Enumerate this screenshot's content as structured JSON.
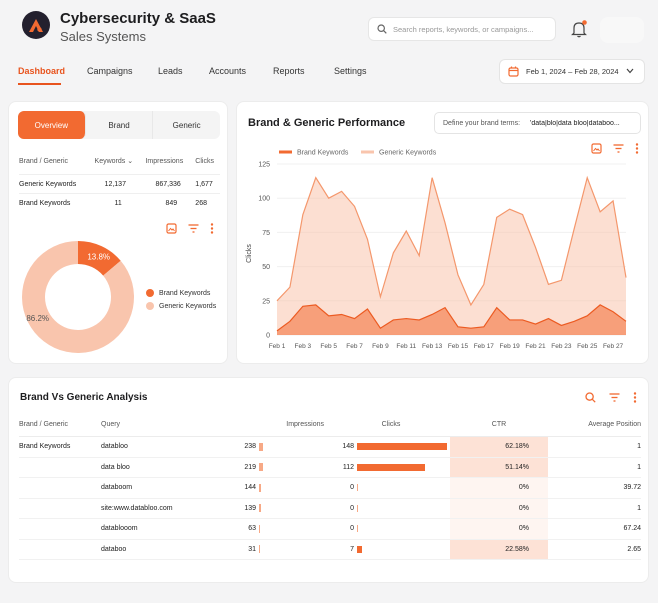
{
  "header": {
    "title": "Cybersecurity & SaaS",
    "subtitle": "Sales Systems",
    "search_placeholder": "Search reports, keywords, or campaigns..."
  },
  "nav": {
    "tabs": [
      "Dashboard",
      "Campaigns",
      "Leads",
      "Accounts",
      "Reports",
      "Settings"
    ],
    "active": "Dashboard",
    "date_range": "Feb 1, 2024 – Feb 28, 2024"
  },
  "summary": {
    "segments": [
      "Overview",
      "Brand",
      "Generic"
    ],
    "active_segment": "Overview",
    "columns": [
      "Brand / Generic",
      "Keywords",
      "Impressions",
      "Clicks"
    ],
    "rows": [
      {
        "name": "Generic Keywords",
        "keywords": "12,137",
        "impressions": "867,336",
        "clicks": "1,677"
      },
      {
        "name": "Brand Keywords",
        "keywords": "11",
        "impressions": "849",
        "clicks": "268"
      }
    ],
    "donut": {
      "brand_pct": "13.8%",
      "generic_pct": "86.2%",
      "brand_value": 13.8,
      "legend": [
        "Brand Keywords",
        "Generic Keywords"
      ],
      "colors": {
        "brand": "#f26a31",
        "generic": "#f9c5ad"
      }
    }
  },
  "performance": {
    "title": "Brand & Generic Performance",
    "terms_label": "Define your brand terms:",
    "terms_value": "'data|blo|data bloo|databoo..."
  },
  "chart_data": {
    "type": "area",
    "x": [
      "Feb 1",
      "Feb 2",
      "Feb 3",
      "Feb 4",
      "Feb 5",
      "Feb 6",
      "Feb 7",
      "Feb 8",
      "Feb 9",
      "Feb 10",
      "Feb 11",
      "Feb 12",
      "Feb 13",
      "Feb 14",
      "Feb 15",
      "Feb 16",
      "Feb 17",
      "Feb 18",
      "Feb 19",
      "Feb 20",
      "Feb 21",
      "Feb 22",
      "Feb 23",
      "Feb 24",
      "Feb 25",
      "Feb 26",
      "Feb 27",
      "Feb 28"
    ],
    "xticks": [
      "Feb 1",
      "Feb 3",
      "Feb 5",
      "Feb 7",
      "Feb 9",
      "Feb 11",
      "Feb 13",
      "Feb 15",
      "Feb 17",
      "Feb 19",
      "Feb 21",
      "Feb 23",
      "Feb 25",
      "Feb 27"
    ],
    "series": [
      {
        "name": "Brand Keywords",
        "color": "#f26a31",
        "values": [
          3,
          10,
          21,
          22,
          14,
          15,
          12,
          19,
          5,
          11,
          12,
          11,
          15,
          20,
          6,
          5,
          6,
          20,
          11,
          11,
          8,
          12,
          7,
          10,
          14,
          22,
          17,
          10
        ]
      },
      {
        "name": "Generic Keywords",
        "color": "#f9c5ad",
        "values": [
          25,
          35,
          88,
          115,
          100,
          105,
          94,
          70,
          28,
          60,
          76,
          58,
          115,
          82,
          44,
          22,
          37,
          86,
          92,
          88,
          64,
          37,
          40,
          78,
          115,
          90,
          98,
          42
        ]
      }
    ],
    "ylabel": "Clicks",
    "ylim": [
      0,
      125
    ],
    "yticks": [
      0,
      25,
      50,
      75,
      100,
      125
    ],
    "legend": "top-left"
  },
  "analysis": {
    "title": "Brand Vs Generic Analysis",
    "columns": [
      "Brand / Generic",
      "Query",
      "Impressions",
      "Clicks",
      "CTR",
      "Average Position"
    ],
    "group": "Brand Keywords",
    "rows": [
      {
        "query": "databloo",
        "impressions": "238",
        "clicks": "148",
        "ctr": "62.18%",
        "avg": "1",
        "imp_frac": 1.0,
        "clk_frac": 1.0,
        "ctr_hl": true
      },
      {
        "query": "data bloo",
        "impressions": "219",
        "clicks": "112",
        "ctr": "51.14%",
        "avg": "1",
        "imp_frac": 0.92,
        "clk_frac": 0.76,
        "ctr_hl": true
      },
      {
        "query": "databoom",
        "impressions": "144",
        "clicks": "0",
        "ctr": "0%",
        "avg": "39.72",
        "imp_frac": 0.6,
        "clk_frac": 0.0,
        "ctr_hl": false
      },
      {
        "query": "site:www.databloo.com",
        "impressions": "139",
        "clicks": "0",
        "ctr": "0%",
        "avg": "1",
        "imp_frac": 0.58,
        "clk_frac": 0.0,
        "ctr_hl": false
      },
      {
        "query": "datablooom",
        "impressions": "63",
        "clicks": "0",
        "ctr": "0%",
        "avg": "67.24",
        "imp_frac": 0.26,
        "clk_frac": 0.0,
        "ctr_hl": false
      },
      {
        "query": "databoo",
        "impressions": "31",
        "clicks": "7",
        "ctr": "22.58%",
        "avg": "2.65",
        "imp_frac": 0.13,
        "clk_frac": 0.05,
        "ctr_hl": true
      }
    ]
  }
}
